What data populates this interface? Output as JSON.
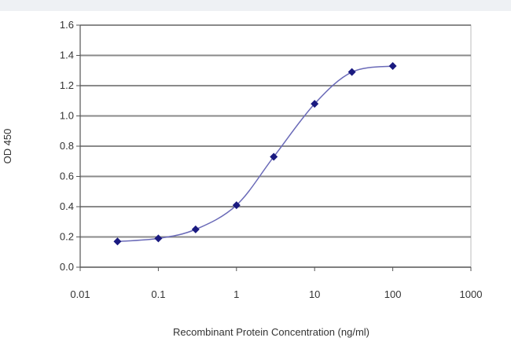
{
  "chart_data": {
    "type": "scatter",
    "title": "",
    "xlabel": "Recombinant Protein Concentration (ng/ml)",
    "ylabel": "OD 450",
    "xscale": "log",
    "xlim": [
      0.01,
      1000
    ],
    "ylim": [
      0,
      1.6
    ],
    "xticks": [
      "0.01",
      "0.1",
      "1",
      "10",
      "100",
      "1000"
    ],
    "xtick_values": [
      0.01,
      0.1,
      1,
      10,
      100,
      1000
    ],
    "yticks": [
      "0.0",
      "0.2",
      "0.4",
      "0.6",
      "0.8",
      "1.0",
      "1.2",
      "1.4",
      "1.6"
    ],
    "ytick_values": [
      0,
      0.2,
      0.4,
      0.6,
      0.8,
      1.0,
      1.2,
      1.4,
      1.6
    ],
    "grid": "horizontal",
    "legend": "none",
    "series": [
      {
        "x": [
          0.03,
          0.1,
          0.3,
          1,
          3,
          10,
          30,
          100
        ],
        "y": [
          0.17,
          0.19,
          0.25,
          0.41,
          0.73,
          1.08,
          1.29,
          1.33
        ],
        "line": "smooth",
        "color": "#1a1a80",
        "line_color": "#6a6ab8"
      }
    ]
  }
}
